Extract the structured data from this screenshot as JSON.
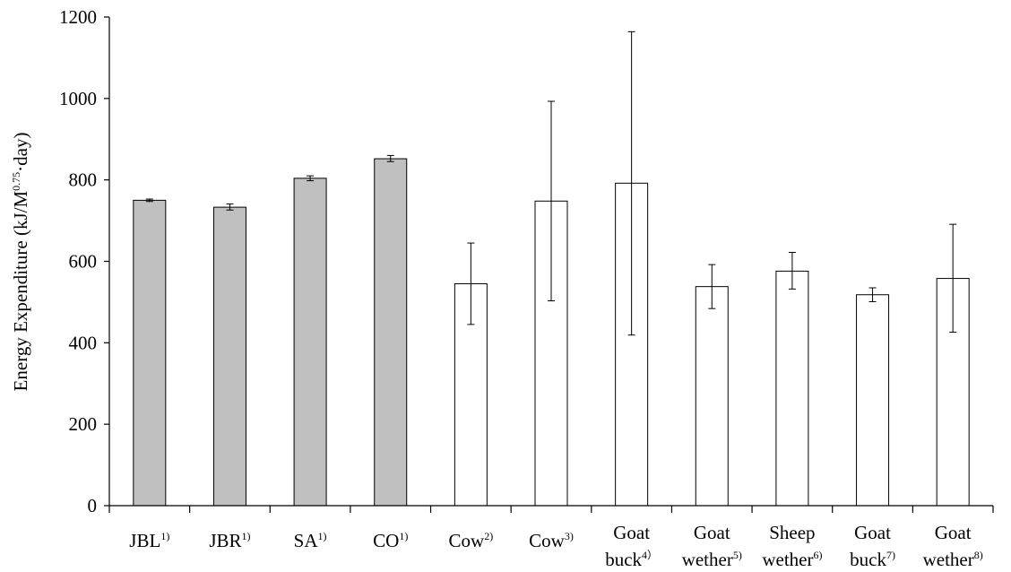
{
  "chart_data": {
    "type": "bar",
    "title": "",
    "xlabel": "",
    "ylabel": "Energy Expenditure (kJ/M0.75·day)",
    "ylabel_parts": {
      "main": "Energy Expenditure  (kJ/M",
      "sup": "0.75",
      "tail": "·day)"
    },
    "ylim": [
      0,
      1200
    ],
    "yticks": [
      "0",
      "200",
      "400",
      "600",
      "800",
      "1000",
      "1200"
    ],
    "grid": false,
    "legend": "none",
    "colors": {
      "filled": "#c0c0c0",
      "open": "#ffffff",
      "stroke": "#000000"
    },
    "categories": [
      {
        "lines": [
          "JBL"
        ],
        "sup": "1)",
        "value": 750,
        "err_low": 747,
        "err_high": 753,
        "filled": true
      },
      {
        "lines": [
          "JBR"
        ],
        "sup": "1)",
        "value": 733,
        "err_low": 726,
        "err_high": 741,
        "filled": true
      },
      {
        "lines": [
          "SA"
        ],
        "sup": "1)",
        "value": 804,
        "err_low": 798,
        "err_high": 810,
        "filled": true
      },
      {
        "lines": [
          "CO"
        ],
        "sup": "1)",
        "value": 852,
        "err_low": 845,
        "err_high": 860,
        "filled": true
      },
      {
        "lines": [
          "Cow"
        ],
        "sup": "2)",
        "value": 545,
        "err_low": 445,
        "err_high": 645,
        "filled": false
      },
      {
        "lines": [
          "Cow"
        ],
        "sup": "3)",
        "value": 748,
        "err_low": 503,
        "err_high": 993,
        "filled": false
      },
      {
        "lines": [
          "Goat",
          "buck"
        ],
        "sup": "4）",
        "value": 792,
        "err_low": 419,
        "err_high": 1164,
        "filled": false
      },
      {
        "lines": [
          "Goat",
          "wether"
        ],
        "sup": "5)",
        "value": 538,
        "err_low": 484,
        "err_high": 592,
        "filled": false
      },
      {
        "lines": [
          "Sheep",
          "wether"
        ],
        "sup": "6)",
        "value": 576,
        "err_low": 532,
        "err_high": 622,
        "filled": false
      },
      {
        "lines": [
          "Goat",
          "buck"
        ],
        "sup": "7)",
        "value": 518,
        "err_low": 501,
        "err_high": 535,
        "filled": false
      },
      {
        "lines": [
          "Goat",
          "wether"
        ],
        "sup": "8)",
        "value": 558,
        "err_low": 426,
        "err_high": 691,
        "filled": false
      }
    ]
  }
}
